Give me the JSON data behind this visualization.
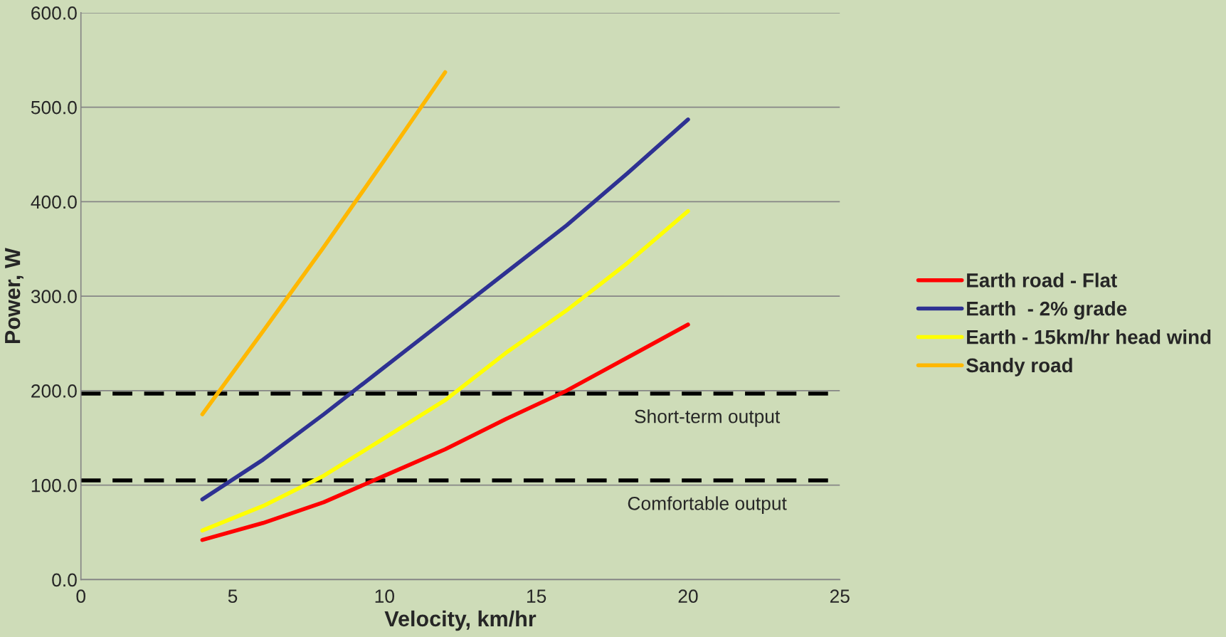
{
  "chart_data": {
    "type": "line",
    "xlabel": "Velocity, km/hr",
    "ylabel": "Power, W",
    "xlim": [
      0,
      25
    ],
    "xticks": [
      0,
      5,
      10,
      15,
      20,
      25
    ],
    "ylim": [
      0,
      600
    ],
    "yticks": [
      {
        "value": 0,
        "label": "0.0"
      },
      {
        "value": 100,
        "label": "100.0"
      },
      {
        "value": 200,
        "label": "200.0"
      },
      {
        "value": 300,
        "label": "300.0"
      },
      {
        "value": 400,
        "label": "400.0"
      },
      {
        "value": 500,
        "label": "500.0"
      },
      {
        "value": 600,
        "label": "600.0"
      }
    ],
    "grid": "y",
    "legend": "right",
    "marker": "none",
    "line_style": "solid",
    "series": [
      {
        "name": "Earth road - Flat",
        "color": "#ff0000",
        "x": [
          4,
          6,
          8,
          10,
          12,
          14,
          16,
          18,
          20
        ],
        "values": [
          42,
          60,
          82,
          110,
          138,
          170,
          200,
          235,
          270
        ]
      },
      {
        "name": "Earth  - 2% grade",
        "color": "#2e3192",
        "x": [
          4,
          6,
          8,
          10,
          12,
          14,
          16,
          18,
          20
        ],
        "values": [
          85,
          127,
          175,
          225,
          275,
          325,
          375,
          430,
          487
        ]
      },
      {
        "name": "Earth - 15km/hr head wind",
        "color": "#ffff00",
        "x": [
          4,
          6,
          8,
          10,
          12,
          14,
          16,
          18,
          20
        ],
        "values": [
          52,
          78,
          110,
          150,
          190,
          240,
          285,
          335,
          390
        ]
      },
      {
        "name": "Sandy road",
        "color": "#ffb800",
        "x": [
          4,
          6,
          8,
          10,
          12
        ],
        "values": [
          175,
          263,
          352,
          444,
          537
        ]
      }
    ],
    "ref_lines": [
      {
        "axis": "y",
        "value": 197,
        "label": "Short-term output",
        "color": "#000000",
        "line_style": "dashed"
      },
      {
        "axis": "y",
        "value": 105,
        "label": "Comfortable output",
        "color": "#000000",
        "line_style": "dashed"
      }
    ]
  }
}
